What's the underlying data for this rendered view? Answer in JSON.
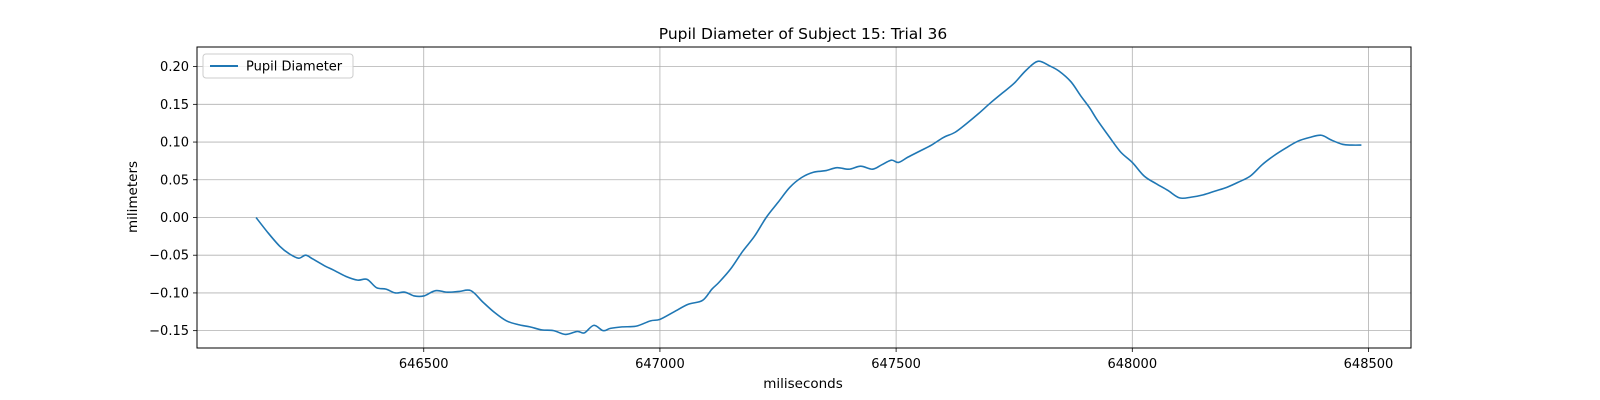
{
  "chart_data": {
    "type": "line",
    "title": "Pupil Diameter of Subject 15: Trial 36",
    "xlabel": "miliseconds",
    "ylabel": "milimeters",
    "xlim": [
      646020,
      648590
    ],
    "ylim": [
      -0.173,
      0.226
    ],
    "x_ticks": [
      646500,
      647000,
      647500,
      648000,
      648500
    ],
    "y_ticks": [
      -0.15,
      -0.1,
      -0.05,
      0.0,
      0.05,
      0.1,
      0.15,
      0.2
    ],
    "x_tick_labels": [
      "646500",
      "647000",
      "647500",
      "648000",
      "648500"
    ],
    "y_tick_labels": [
      "−0.15",
      "−0.10",
      "−0.05",
      "0.00",
      "0.05",
      "0.10",
      "0.15",
      "0.20"
    ],
    "grid": true,
    "legend": {
      "position": "upper-left"
    },
    "series": [
      {
        "name": "Pupil Diameter",
        "color": "#1f77b4",
        "x": [
          646145,
          646170,
          646195,
          646215,
          646235,
          646250,
          646265,
          646290,
          646310,
          646335,
          646360,
          646380,
          646400,
          646420,
          646440,
          646460,
          646480,
          646500,
          646525,
          646550,
          646575,
          646600,
          646625,
          646650,
          646675,
          646700,
          646725,
          646750,
          646775,
          646800,
          646825,
          646840,
          646860,
          646880,
          646895,
          646920,
          646950,
          646980,
          647000,
          647030,
          647060,
          647090,
          647110,
          647125,
          647150,
          647175,
          647200,
          647225,
          647250,
          647275,
          647300,
          647325,
          647350,
          647375,
          647400,
          647425,
          647450,
          647470,
          647490,
          647505,
          647525,
          647550,
          647575,
          647600,
          647625,
          647650,
          647675,
          647700,
          647725,
          647750,
          647775,
          647800,
          647825,
          647845,
          647870,
          647890,
          647910,
          647925,
          647950,
          647975,
          648000,
          648025,
          648050,
          648075,
          648100,
          648125,
          648150,
          648175,
          648200,
          648225,
          648250,
          648275,
          648300,
          648325,
          648350,
          648375,
          648400,
          648420,
          648445,
          648465,
          648485
        ],
        "y": [
          0.0,
          -0.02,
          -0.038,
          -0.048,
          -0.054,
          -0.05,
          -0.055,
          -0.064,
          -0.07,
          -0.078,
          -0.083,
          -0.082,
          -0.093,
          -0.095,
          -0.1,
          -0.099,
          -0.104,
          -0.104,
          -0.097,
          -0.099,
          -0.098,
          -0.097,
          -0.112,
          -0.126,
          -0.137,
          -0.142,
          -0.145,
          -0.149,
          -0.15,
          -0.155,
          -0.151,
          -0.153,
          -0.143,
          -0.15,
          -0.147,
          -0.145,
          -0.144,
          -0.137,
          -0.135,
          -0.125,
          -0.115,
          -0.11,
          -0.095,
          -0.086,
          -0.068,
          -0.045,
          -0.025,
          0.0,
          0.02,
          0.04,
          0.053,
          0.06,
          0.062,
          0.066,
          0.064,
          0.068,
          0.064,
          0.07,
          0.076,
          0.073,
          0.08,
          0.088,
          0.096,
          0.106,
          0.113,
          0.125,
          0.138,
          0.152,
          0.165,
          0.178,
          0.195,
          0.207,
          0.201,
          0.194,
          0.18,
          0.162,
          0.145,
          0.13,
          0.108,
          0.087,
          0.073,
          0.055,
          0.045,
          0.036,
          0.026,
          0.027,
          0.03,
          0.035,
          0.04,
          0.047,
          0.055,
          0.07,
          0.082,
          0.092,
          0.101,
          0.106,
          0.109,
          0.103,
          0.097,
          0.096,
          0.096
        ]
      }
    ]
  }
}
